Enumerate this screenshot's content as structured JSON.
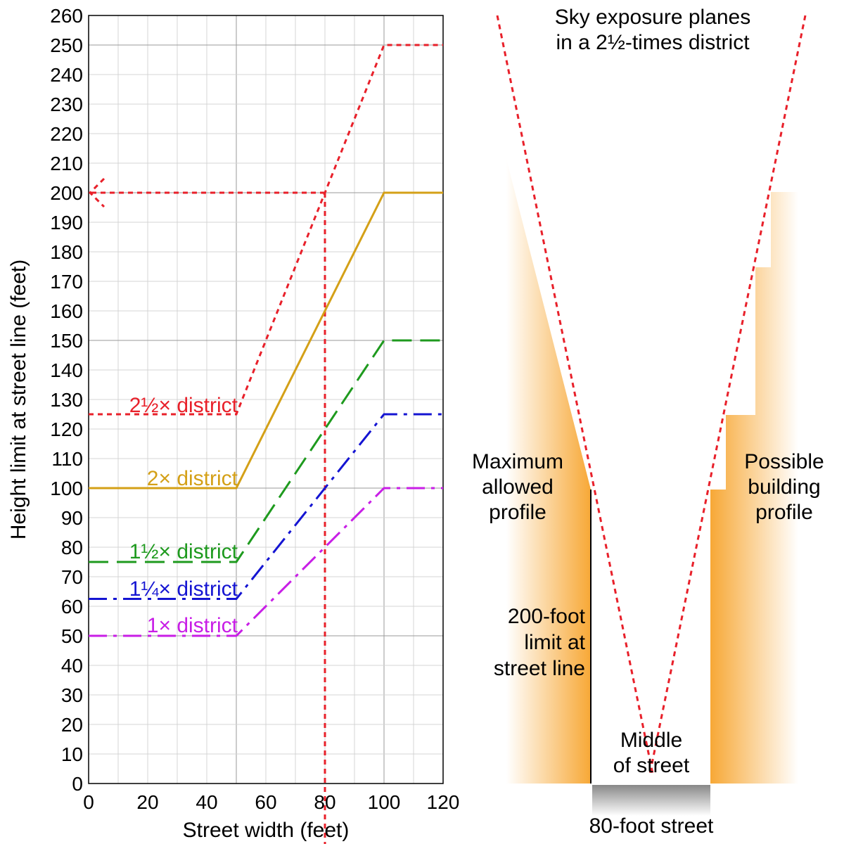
{
  "chart_data": {
    "type": "line",
    "xlabel": "Street width (feet)",
    "ylabel": "Height limit at street line (feet)",
    "xlim": [
      0,
      120
    ],
    "ylim": [
      0,
      260
    ],
    "x_ticks": [
      0,
      20,
      40,
      60,
      80,
      100,
      120
    ],
    "y_ticks": [
      0,
      10,
      20,
      30,
      40,
      50,
      60,
      70,
      80,
      90,
      100,
      110,
      120,
      130,
      140,
      150,
      160,
      170,
      180,
      190,
      200,
      210,
      220,
      230,
      240,
      250,
      260
    ],
    "grid": true,
    "series": [
      {
        "name": "2½× district",
        "color": "#e8202a",
        "style": "dotted",
        "x": [
          0,
          50,
          100,
          120
        ],
        "y": [
          125,
          125,
          250,
          250
        ]
      },
      {
        "name": "2× district",
        "color": "#d4a017",
        "style": "solid",
        "x": [
          0,
          50,
          100,
          120
        ],
        "y": [
          100,
          100,
          200,
          200
        ]
      },
      {
        "name": "1½× district",
        "color": "#1e9a1e",
        "style": "dashed",
        "x": [
          0,
          50,
          100,
          120
        ],
        "y": [
          75,
          75,
          150,
          150
        ]
      },
      {
        "name": "1¼× district",
        "color": "#1414d2",
        "style": "dashdot",
        "x": [
          0,
          50,
          100,
          120
        ],
        "y": [
          62.5,
          62.5,
          125,
          125
        ]
      },
      {
        "name": "1× district",
        "color": "#c81ee6",
        "style": "dashdot",
        "x": [
          0,
          50,
          100,
          120
        ],
        "y": [
          50,
          50,
          100,
          100
        ]
      }
    ],
    "reference": {
      "street_width": 80,
      "height": 200,
      "color": "#e8202a"
    }
  },
  "diagram": {
    "title_lines": [
      "Sky exposure planes",
      "in a 2½-times district"
    ],
    "left_label": [
      "Maximum",
      "allowed",
      "profile"
    ],
    "right_label": [
      "Possible",
      "building",
      "profile"
    ],
    "limit_label": [
      "200-foot",
      "limit at",
      "street line"
    ],
    "middle_label": [
      "Middle",
      "of street"
    ],
    "street_label": "80-foot street",
    "accent_color": "#e8202a",
    "building_color": "#f7a836"
  }
}
